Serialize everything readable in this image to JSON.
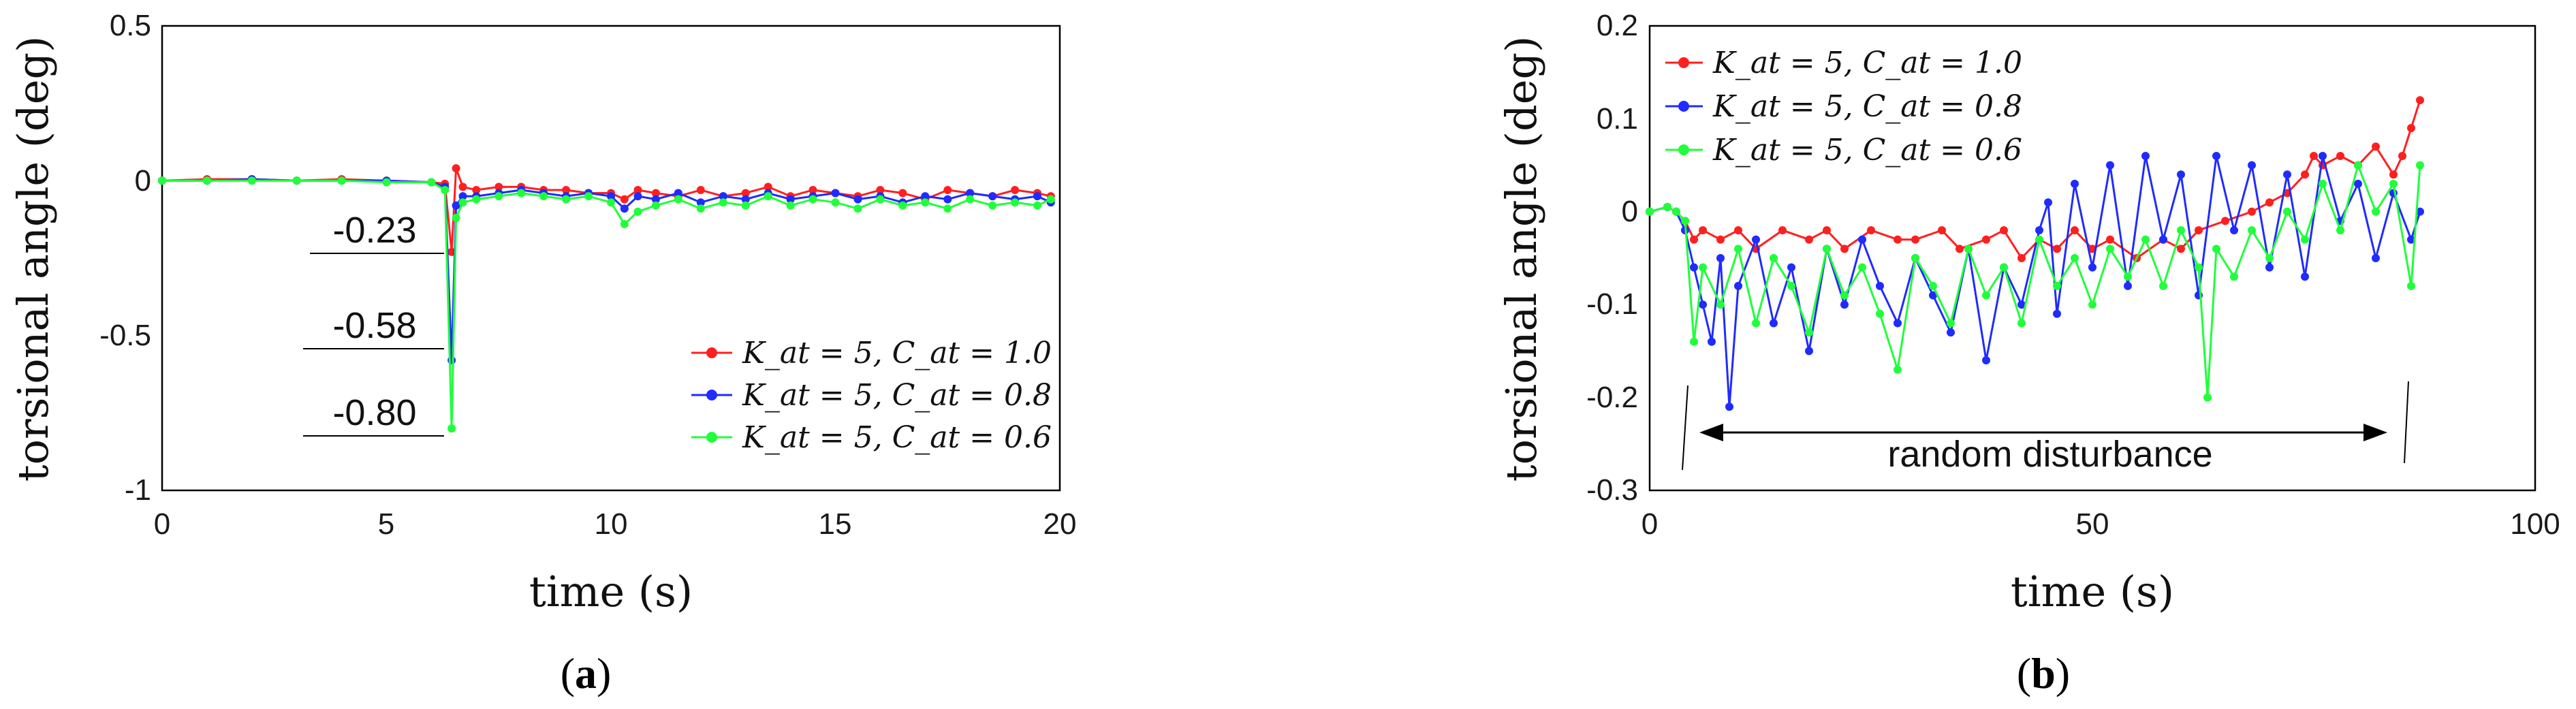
{
  "colors": {
    "red": "#ff1f1f",
    "blue": "#1f2bff",
    "green": "#1fff3a",
    "axis": "#000000"
  },
  "panels": {
    "a": {
      "caption_open": "(",
      "caption_letter": "a",
      "caption_close": ")"
    },
    "b": {
      "caption_open": "(",
      "caption_letter": "b",
      "caption_close": ")"
    }
  },
  "chart_data": [
    {
      "type": "line",
      "panel": "a",
      "xlabel": "time (s)",
      "ylabel": "torsional angle (deg)",
      "xlim": [
        0,
        20
      ],
      "ylim": [
        -1,
        0.5
      ],
      "xticks": [
        "0",
        "5",
        "10",
        "15",
        "20"
      ],
      "yticks": [
        "0.5",
        "0",
        "-0.5",
        "-1"
      ],
      "grid": false,
      "legend_position": "bottom-right",
      "series": [
        {
          "name": "K_at = 5, C_at = 1.0",
          "color": "red",
          "x": [
            0,
            1,
            2,
            3,
            4,
            5,
            6,
            6.3,
            6.45,
            6.55,
            6.7,
            7,
            7.5,
            8,
            8.5,
            9,
            9.5,
            10,
            10.3,
            10.6,
            11,
            11.5,
            12,
            12.5,
            13,
            13.5,
            14,
            14.5,
            15,
            15.5,
            16,
            16.5,
            17,
            17.5,
            18,
            18.5,
            19,
            19.5,
            19.8
          ],
          "y": [
            0,
            0.005,
            0.005,
            0,
            0.005,
            0,
            -0.005,
            -0.01,
            -0.23,
            0.04,
            -0.02,
            -0.03,
            -0.02,
            -0.02,
            -0.03,
            -0.03,
            -0.04,
            -0.04,
            -0.06,
            -0.03,
            -0.04,
            -0.05,
            -0.03,
            -0.05,
            -0.04,
            -0.02,
            -0.05,
            -0.03,
            -0.04,
            -0.05,
            -0.03,
            -0.04,
            -0.06,
            -0.03,
            -0.04,
            -0.05,
            -0.03,
            -0.04,
            -0.05
          ]
        },
        {
          "name": "K_at = 5, C_at = 0.8",
          "color": "blue",
          "x": [
            0,
            1,
            2,
            3,
            4,
            5,
            6,
            6.3,
            6.45,
            6.55,
            6.7,
            7,
            7.5,
            8,
            8.5,
            9,
            9.5,
            10,
            10.3,
            10.6,
            11,
            11.5,
            12,
            12.5,
            13,
            13.5,
            14,
            14.5,
            15,
            15.5,
            16,
            16.5,
            17,
            17.5,
            18,
            18.5,
            19,
            19.5,
            19.8
          ],
          "y": [
            0,
            0,
            0.005,
            0,
            0,
            0,
            -0.005,
            -0.02,
            -0.58,
            -0.08,
            -0.05,
            -0.05,
            -0.04,
            -0.03,
            -0.04,
            -0.05,
            -0.04,
            -0.05,
            -0.09,
            -0.05,
            -0.06,
            -0.04,
            -0.07,
            -0.05,
            -0.06,
            -0.04,
            -0.06,
            -0.05,
            -0.04,
            -0.06,
            -0.05,
            -0.07,
            -0.05,
            -0.06,
            -0.04,
            -0.05,
            -0.06,
            -0.05,
            -0.07
          ]
        },
        {
          "name": "K_at = 5, C_at = 0.6",
          "color": "green",
          "x": [
            0,
            1,
            2,
            3,
            4,
            5,
            6,
            6.3,
            6.45,
            6.55,
            6.7,
            7,
            7.5,
            8,
            8.5,
            9,
            9.5,
            10,
            10.3,
            10.6,
            11,
            11.5,
            12,
            12.5,
            13,
            13.5,
            14,
            14.5,
            15,
            15.5,
            16,
            16.5,
            17,
            17.5,
            18,
            18.5,
            19,
            19.5,
            19.8
          ],
          "y": [
            0,
            0,
            0,
            0,
            0,
            -0.005,
            -0.005,
            -0.03,
            -0.8,
            -0.12,
            -0.07,
            -0.06,
            -0.05,
            -0.04,
            -0.05,
            -0.06,
            -0.05,
            -0.07,
            -0.14,
            -0.1,
            -0.08,
            -0.06,
            -0.09,
            -0.07,
            -0.08,
            -0.05,
            -0.08,
            -0.06,
            -0.07,
            -0.09,
            -0.06,
            -0.08,
            -0.07,
            -0.09,
            -0.06,
            -0.08,
            -0.07,
            -0.08,
            -0.06
          ]
        }
      ],
      "annotations": [
        {
          "text": "-0.23",
          "value": -0.23,
          "x": 6.45
        },
        {
          "text": "-0.58",
          "value": -0.58,
          "x": 6.45
        },
        {
          "text": "-0.80",
          "value": -0.8,
          "x": 6.45
        }
      ]
    },
    {
      "type": "line",
      "panel": "b",
      "xlabel": "time (s)",
      "ylabel": "torsional angle (deg)",
      "xlim": [
        0,
        100
      ],
      "ylim": [
        -0.3,
        0.2
      ],
      "xticks": [
        "0",
        "50",
        "100"
      ],
      "yticks": [
        "0.2",
        "0.1",
        "0",
        "-0.1",
        "-0.2",
        "-0.3"
      ],
      "grid": false,
      "legend_position": "top-left",
      "series": [
        {
          "name": "K_at = 5, C_at = 1.0",
          "color": "red",
          "x": [
            0,
            2,
            3,
            4,
            5,
            6,
            8,
            10,
            12,
            15,
            18,
            20,
            22,
            25,
            28,
            30,
            33,
            35,
            38,
            40,
            42,
            44,
            46,
            48,
            50,
            52,
            55,
            58,
            60,
            62,
            65,
            68,
            70,
            72,
            74,
            75,
            76,
            78,
            80,
            82,
            84,
            85,
            86,
            87
          ],
          "y": [
            0,
            0.005,
            0,
            -0.01,
            -0.03,
            -0.02,
            -0.03,
            -0.02,
            -0.04,
            -0.02,
            -0.03,
            -0.02,
            -0.04,
            -0.02,
            -0.03,
            -0.03,
            -0.02,
            -0.04,
            -0.03,
            -0.02,
            -0.05,
            -0.03,
            -0.04,
            -0.02,
            -0.04,
            -0.03,
            -0.05,
            -0.03,
            -0.04,
            -0.02,
            -0.01,
            0,
            0.01,
            0.02,
            0.04,
            0.06,
            0.05,
            0.06,
            0.05,
            0.07,
            0.04,
            0.06,
            0.09,
            0.12
          ]
        },
        {
          "name": "K_at = 5, C_at = 0.8",
          "color": "blue",
          "x": [
            0,
            2,
            3,
            4,
            5,
            6,
            7,
            8,
            9,
            10,
            12,
            14,
            16,
            18,
            20,
            22,
            24,
            26,
            28,
            30,
            32,
            34,
            36,
            38,
            40,
            42,
            44,
            45,
            46,
            48,
            50,
            52,
            54,
            56,
            58,
            60,
            62,
            64,
            66,
            68,
            70,
            72,
            74,
            76,
            78,
            80,
            82,
            84,
            86,
            87
          ],
          "y": [
            0,
            0.005,
            0,
            -0.02,
            -0.06,
            -0.1,
            -0.14,
            -0.05,
            -0.21,
            -0.08,
            -0.03,
            -0.12,
            -0.06,
            -0.15,
            -0.04,
            -0.1,
            -0.03,
            -0.08,
            -0.12,
            -0.05,
            -0.09,
            -0.13,
            -0.04,
            -0.16,
            -0.06,
            -0.1,
            -0.02,
            0.01,
            -0.11,
            0.03,
            -0.06,
            0.05,
            -0.08,
            0.06,
            -0.03,
            0.04,
            -0.09,
            0.06,
            -0.02,
            0.05,
            -0.06,
            0.04,
            -0.07,
            0.06,
            -0.01,
            0.03,
            -0.05,
            0.02,
            -0.03,
            0
          ]
        },
        {
          "name": "K_at = 5, C_at = 0.6",
          "color": "green",
          "x": [
            0,
            2,
            3,
            4,
            5,
            6,
            8,
            10,
            12,
            14,
            16,
            18,
            20,
            22,
            24,
            26,
            28,
            30,
            32,
            34,
            36,
            38,
            40,
            42,
            44,
            46,
            48,
            50,
            52,
            54,
            56,
            58,
            60,
            62,
            63,
            64,
            66,
            68,
            70,
            72,
            74,
            76,
            78,
            80,
            82,
            84,
            86,
            87
          ],
          "y": [
            0,
            0.005,
            0,
            -0.01,
            -0.14,
            -0.06,
            -0.1,
            -0.04,
            -0.12,
            -0.05,
            -0.08,
            -0.13,
            -0.04,
            -0.09,
            -0.06,
            -0.11,
            -0.17,
            -0.05,
            -0.08,
            -0.12,
            -0.04,
            -0.09,
            -0.06,
            -0.12,
            -0.03,
            -0.08,
            -0.05,
            -0.1,
            -0.04,
            -0.07,
            -0.03,
            -0.08,
            -0.02,
            -0.06,
            -0.2,
            -0.04,
            -0.07,
            -0.02,
            -0.05,
            0,
            -0.03,
            0.03,
            -0.02,
            0.05,
            0,
            0.03,
            -0.08,
            0.05
          ]
        }
      ],
      "annotations": [
        {
          "text": "random disturbance",
          "x_start": 4,
          "x_end": 84
        }
      ]
    }
  ]
}
